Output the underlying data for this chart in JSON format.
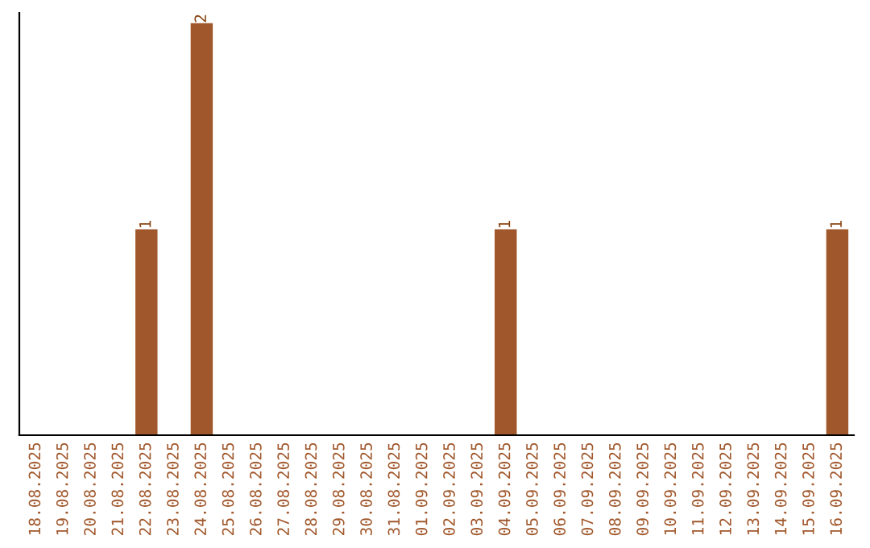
{
  "chart_data": {
    "type": "bar",
    "categories": [
      "18.08.2025",
      "19.08.2025",
      "20.08.2025",
      "21.08.2025",
      "22.08.2025",
      "23.08.2025",
      "24.08.2025",
      "25.08.2025",
      "26.08.2025",
      "27.08.2025",
      "28.08.2025",
      "29.08.2025",
      "30.08.2025",
      "31.08.2025",
      "01.09.2025",
      "02.09.2025",
      "03.09.2025",
      "04.09.2025",
      "05.09.2025",
      "06.09.2025",
      "07.09.2025",
      "08.09.2025",
      "09.09.2025",
      "10.09.2025",
      "11.09.2025",
      "12.09.2025",
      "13.09.2025",
      "14.09.2025",
      "15.09.2025",
      "16.09.2025"
    ],
    "values": [
      null,
      null,
      null,
      null,
      1,
      null,
      2,
      null,
      null,
      null,
      null,
      null,
      null,
      null,
      null,
      null,
      null,
      1,
      null,
      null,
      null,
      null,
      null,
      null,
      null,
      null,
      null,
      null,
      null,
      1
    ],
    "value_labels": [
      null,
      null,
      null,
      null,
      "1",
      null,
      "2",
      null,
      null,
      null,
      null,
      null,
      null,
      null,
      null,
      null,
      null,
      "1",
      null,
      null,
      null,
      null,
      null,
      null,
      null,
      null,
      null,
      null,
      null,
      "1"
    ],
    "color": "#a0572b",
    "ylim": [
      0,
      2.05
    ],
    "grid": false,
    "legend": false
  }
}
